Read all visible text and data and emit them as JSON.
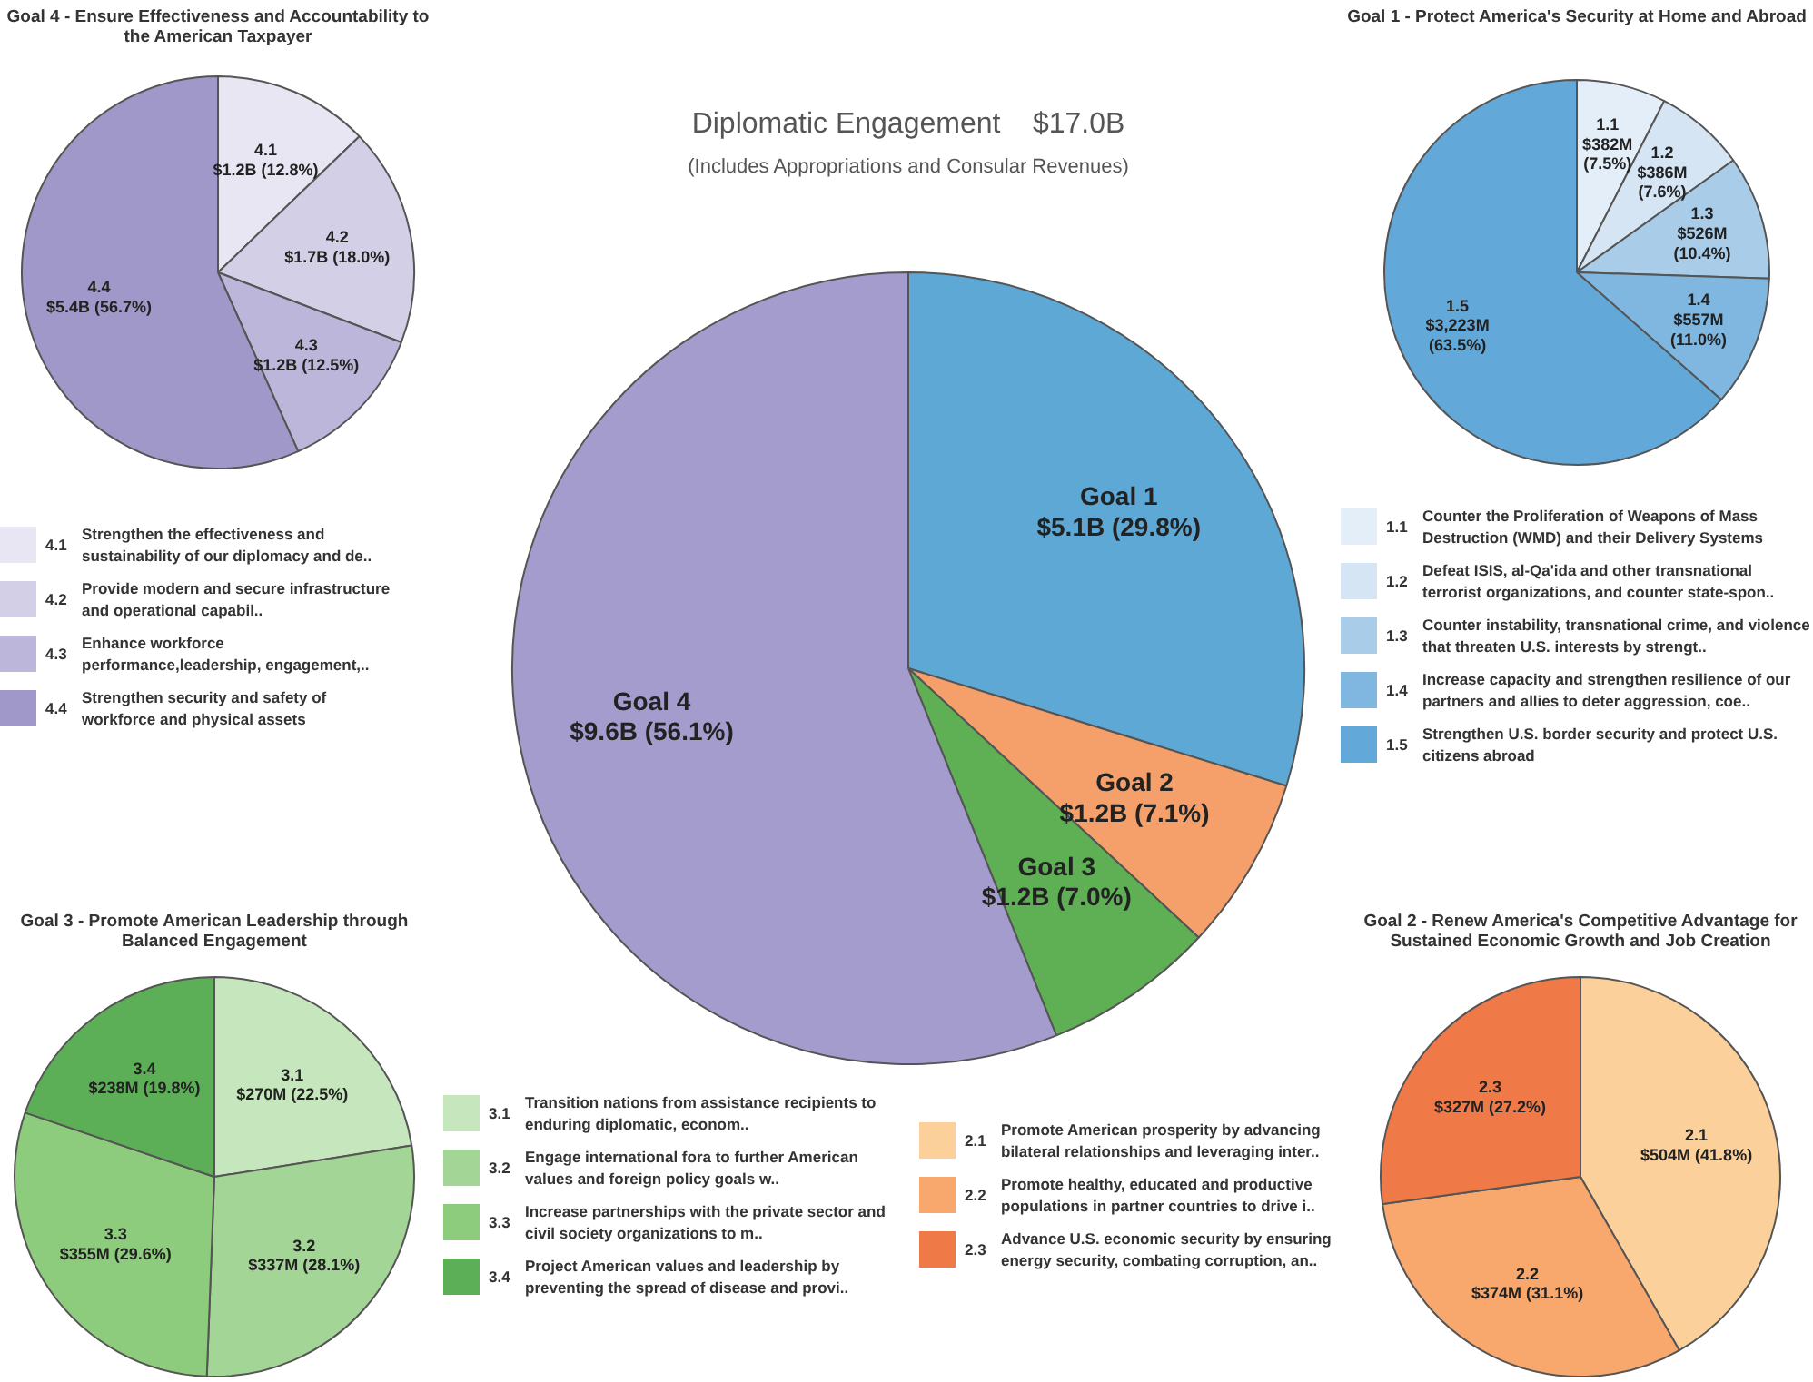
{
  "chart_data": [
    {
      "type": "pie",
      "title": "Goal 4 - Ensure Effectiveness and Accountability to the American Taxpayer",
      "categories": [
        "4.1",
        "4.2",
        "4.3",
        "4.4"
      ],
      "values": [
        12.8,
        18.0,
        12.5,
        56.7
      ],
      "colors": [
        "#e8e6f2",
        "#d2cfe6",
        "#bbb6da",
        "#9f98c9"
      ],
      "value_labels": [
        "$1.2B (12.8%)",
        "$1.7B (18.0%)",
        "$1.2B (12.5%)",
        "$5.4B (56.7%)"
      ],
      "legend": "bottom",
      "annotations": [
        "Strengthen the effectiveness and sustainability of our diplomacy and de..",
        "Provide modern and secure infrastructure and operational capabil..",
        "Enhance workforce performance,leadership, engagement,..",
        "Strengthen security and safety of workforce and physical assets"
      ]
    },
    {
      "type": "pie",
      "title": "Diplomatic Engagement    $17.0B",
      "subtitle": "(Includes Appropriations and Consular Revenues)",
      "categories": [
        "Goal 1",
        "Goal 2",
        "Goal 3",
        "Goal 4"
      ],
      "values": [
        29.8,
        7.1,
        7.0,
        56.1
      ],
      "colors": [
        "#5ea8d6",
        "#f5a06a",
        "#5faf55",
        "#a39ccc"
      ],
      "value_labels": [
        "$5.1B (29.8%)",
        "$1.2B (7.1%)",
        "$1.2B (7.0%)",
        "$9.6B (56.1%)"
      ]
    },
    {
      "type": "pie",
      "title": "Goal 1 - Protect America's Security at Home and Abroad",
      "categories": [
        "1.1",
        "1.2",
        "1.3",
        "1.4",
        "1.5"
      ],
      "values": [
        7.5,
        7.6,
        10.4,
        11.0,
        63.5
      ],
      "colors": [
        "#e4eef9",
        "#d5e5f4",
        "#a9cde9",
        "#7fb7e0",
        "#62a8d8"
      ],
      "value_labels": [
        "$382M (7.5%)",
        "$386M (7.6%)",
        "$526M (10.4%)",
        "$557M (11.0%)",
        "$3,223M (63.5%)"
      ],
      "legend": "bottom",
      "annotations": [
        "Counter the Proliferation of Weapons of Mass Destruction (WMD) and their Delivery Systems",
        "Defeat ISIS, al-Qa'ida and other transnational terrorist organizations, and counter state-spon..",
        "Counter instability, transnational crime, and violence that threaten U.S. interests by strengt..",
        "Increase capacity and strengthen resilience of our partners and allies to deter aggression, coe..",
        "Strengthen U.S. border security and protect U.S. citizens abroad"
      ]
    },
    {
      "type": "pie",
      "title": "Goal 3 - Promote American Leadership through Balanced Engagement",
      "categories": [
        "3.1",
        "3.2",
        "3.3",
        "3.4"
      ],
      "values": [
        22.5,
        28.1,
        29.6,
        19.8
      ],
      "colors": [
        "#c6e6bd",
        "#a3d596",
        "#8dcb7d",
        "#5caf57"
      ],
      "value_labels": [
        "$270M (22.5%)",
        "$337M (28.1%)",
        "$355M (29.6%)",
        "$238M (19.8%)"
      ],
      "legend": "right",
      "annotations": [
        "Transition nations from assistance recipients to enduring diplomatic, econom..",
        "Engage international fora to further American values and foreign policy goals w..",
        "Increase partnerships with the private sector and civil society organizations to m..",
        "Project American values and leadership by preventing the spread of disease and provi.."
      ]
    },
    {
      "type": "pie",
      "title": "Goal 2 - Renew America's Competitive Advantage for Sustained Economic Growth and Job Creation",
      "categories": [
        "2.1",
        "2.2",
        "2.3"
      ],
      "values": [
        41.8,
        31.1,
        27.2
      ],
      "colors": [
        "#fcd09a",
        "#f8a86d",
        "#ef7a48"
      ],
      "value_labels": [
        "$504M (41.8%)",
        "$374M (31.1%)",
        "$327M (27.2%)"
      ],
      "legend": "left",
      "annotations": [
        "Promote American prosperity by advancing bilateral relationships and leveraging inter..",
        "Promote healthy, educated and productive populations in partner countries to drive i..",
        "Advance U.S. economic security by ensuring energy security, combating corruption, an.."
      ]
    }
  ]
}
